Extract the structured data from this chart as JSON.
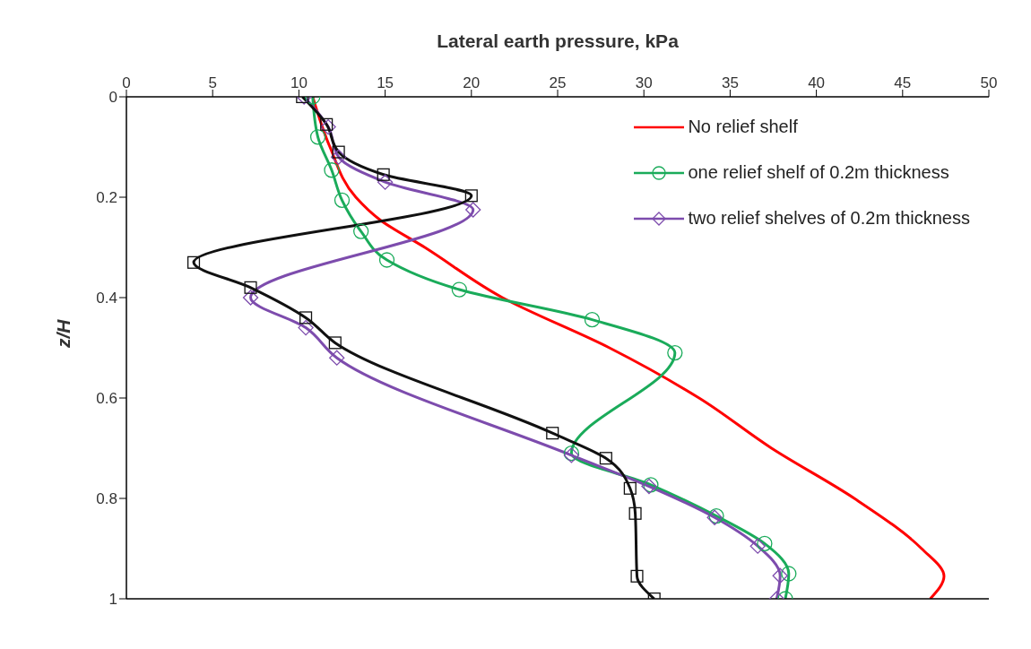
{
  "chart_data": {
    "type": "line",
    "xlabel": "Lateral earth pressure, kPa",
    "ylabel": "z/H",
    "xlim": [
      0,
      50
    ],
    "xticks": [
      0,
      5,
      10,
      15,
      20,
      25,
      30,
      35,
      40,
      45,
      50
    ],
    "ylim": [
      1,
      0
    ],
    "yticks": [
      0,
      0.2,
      0.4,
      0.6,
      0.8,
      1
    ],
    "grid": false,
    "legend": "top right",
    "line_style": "solid",
    "series": [
      {
        "name": "No relief shelf",
        "color": "#ff0000",
        "marker": "none",
        "x": [
          10.8,
          11.8,
          13.3,
          14.7,
          17.3,
          21.8,
          28.0,
          33.2,
          37.4,
          42.2,
          46.1,
          47.4,
          46.6
        ],
        "values": [
          0,
          0.1,
          0.2,
          0.245,
          0.3,
          0.4,
          0.5,
          0.6,
          0.7,
          0.8,
          0.9,
          0.955,
          1
        ]
      },
      {
        "name": "one relief shelf of 0.2m thickness",
        "color": "#1aab5a",
        "marker": "circle",
        "x": [
          10.8,
          11.1,
          11.9,
          12.5,
          13.6,
          15.1,
          19.3,
          27.0,
          31.8,
          25.8,
          30.4,
          34.2,
          37.0,
          38.4,
          38.2
        ],
        "values": [
          0,
          0.08,
          0.146,
          0.206,
          0.268,
          0.325,
          0.384,
          0.444,
          0.51,
          0.71,
          0.773,
          0.835,
          0.89,
          0.95,
          1
        ]
      },
      {
        "name": "two relief shelves of 0.2m thickness",
        "color": "#7d4cad",
        "marker": "diamond",
        "x": [
          10.3,
          11.7,
          12.3,
          15.0,
          20.1,
          7.2,
          10.4,
          12.2,
          25.8,
          30.3,
          34.1,
          36.6,
          37.9,
          37.7
        ],
        "values": [
          0,
          0.06,
          0.12,
          0.17,
          0.225,
          0.4,
          0.46,
          0.52,
          0.714,
          0.776,
          0.838,
          0.895,
          0.954,
          1
        ]
      },
      {
        "color": "#111111",
        "marker": "square",
        "x": [
          10.2,
          11.6,
          12.3,
          14.9,
          20.0,
          3.9,
          7.2,
          10.4,
          12.1,
          24.7,
          27.8,
          29.2,
          29.5,
          29.6,
          30.6
        ],
        "values": [
          0,
          0.055,
          0.11,
          0.155,
          0.197,
          0.33,
          0.38,
          0.44,
          0.49,
          0.67,
          0.72,
          0.78,
          0.83,
          0.955,
          1
        ]
      }
    ]
  }
}
